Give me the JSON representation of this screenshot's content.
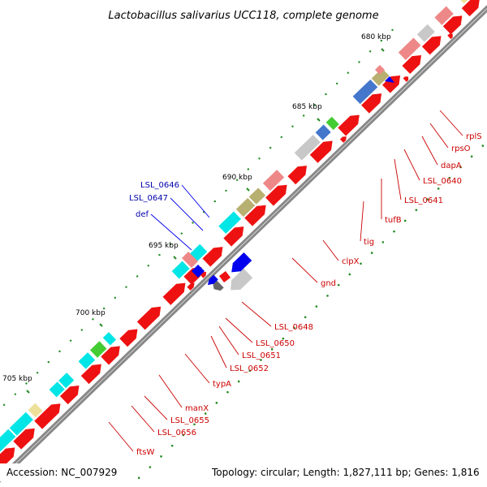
{
  "title": "Lactobacillus salivarius UCC118, complete genome",
  "footer": {
    "accession": "Accession: NC_007929",
    "topology": "Topology: circular; Length: 1,827,111 bp; Genes: 1,816"
  },
  "scale_labels": [
    {
      "text": "680 kbp"
    },
    {
      "text": "685 kbp"
    },
    {
      "text": "690 kbp"
    },
    {
      "text": "695 kbp"
    },
    {
      "text": "700 kbp"
    },
    {
      "text": "705 kbp"
    }
  ],
  "gene_labels": {
    "forward": [
      "rplS",
      "rpsO",
      "dapA",
      "LSL_0640",
      "LSL_0641",
      "tufB",
      "tig",
      "clpX",
      "gnd",
      "LSL_0648",
      "LSL_0650",
      "LSL_0651",
      "LSL_0652",
      "typA",
      "manX",
      "LSL_0655",
      "LSL_0656",
      "ftsW"
    ],
    "reverse": [
      "LSL_0646",
      "LSL_0647",
      "def"
    ]
  },
  "colors": {
    "backbone": "#888888",
    "forward_gene": "#ee1111",
    "reverse_gene": "#0000ee",
    "forward_label": "#cc0000",
    "reverse_label": "#0000aa",
    "tick": "#228b22",
    "cog_cyan": "#00e5e5",
    "cog_olive": "#b8b070",
    "cog_pink": "#ee8888",
    "cog_gray": "#c8c8c8",
    "cog_green": "#44cc33",
    "cog_blue": "#4477cc",
    "cog_khaki": "#eee099"
  }
}
